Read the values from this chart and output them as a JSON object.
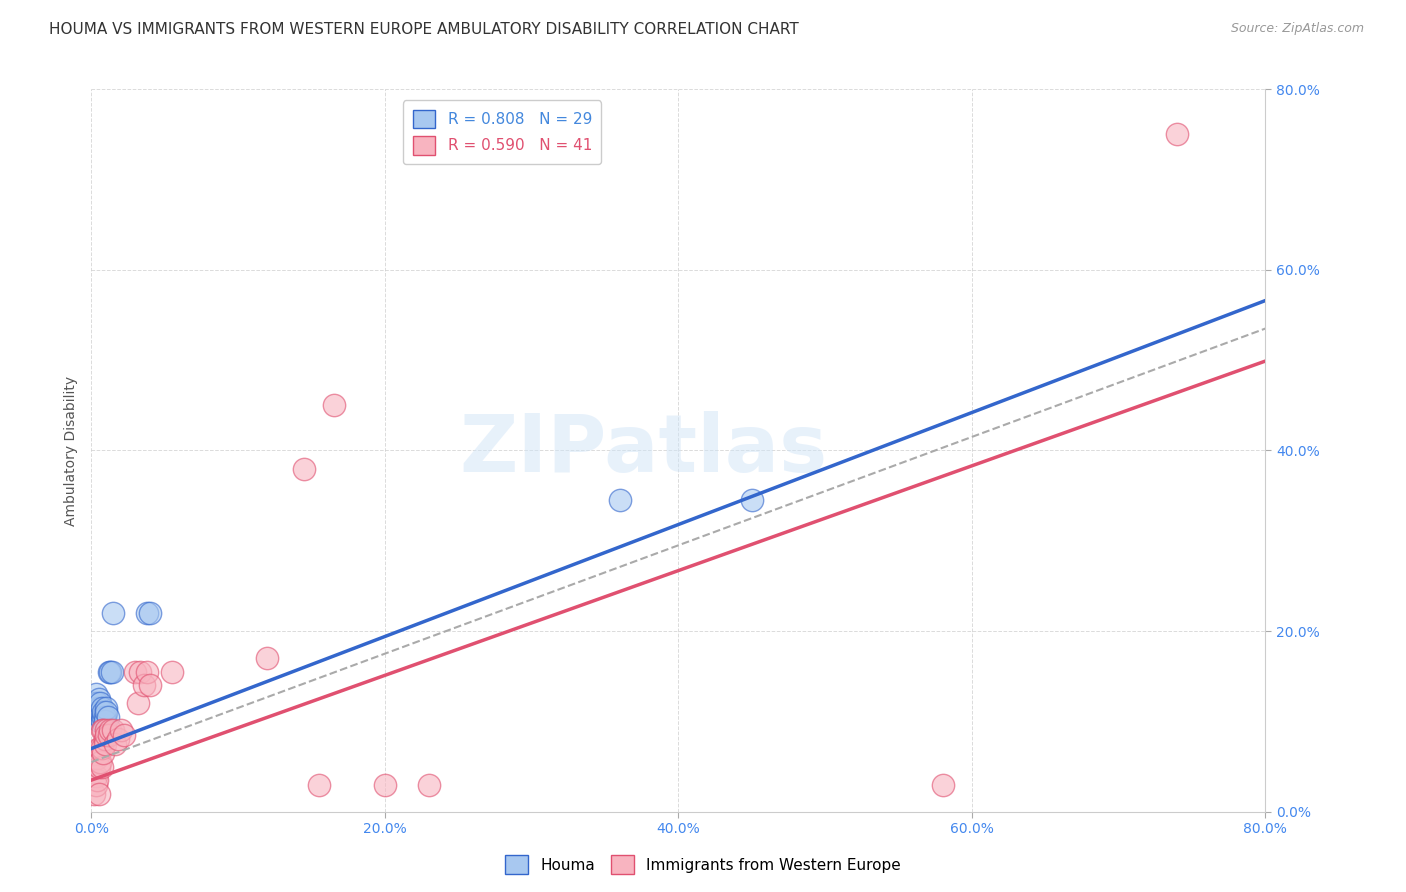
{
  "title": "HOUMA VS IMMIGRANTS FROM WESTERN EUROPE AMBULATORY DISABILITY CORRELATION CHART",
  "source": "Source: ZipAtlas.com",
  "ylabel": "Ambulatory Disability",
  "xlim": [
    0.0,
    0.8
  ],
  "ylim": [
    0.0,
    0.8
  ],
  "xticks": [
    0.0,
    0.2,
    0.4,
    0.6,
    0.8
  ],
  "yticks": [
    0.0,
    0.2,
    0.4,
    0.6,
    0.8
  ],
  "watermark": "ZIPatlas",
  "houma_scatter": [
    [
      0.002,
      0.12
    ],
    [
      0.003,
      0.13
    ],
    [
      0.003,
      0.115
    ],
    [
      0.004,
      0.12
    ],
    [
      0.004,
      0.11
    ],
    [
      0.005,
      0.115
    ],
    [
      0.005,
      0.1
    ],
    [
      0.005,
      0.125
    ],
    [
      0.006,
      0.105
    ],
    [
      0.006,
      0.11
    ],
    [
      0.006,
      0.12
    ],
    [
      0.007,
      0.105
    ],
    [
      0.007,
      0.1
    ],
    [
      0.007,
      0.115
    ],
    [
      0.008,
      0.105
    ],
    [
      0.008,
      0.11
    ],
    [
      0.009,
      0.105
    ],
    [
      0.009,
      0.1
    ],
    [
      0.01,
      0.115
    ],
    [
      0.01,
      0.11
    ],
    [
      0.011,
      0.105
    ],
    [
      0.012,
      0.155
    ],
    [
      0.013,
      0.155
    ],
    [
      0.014,
      0.155
    ],
    [
      0.015,
      0.22
    ],
    [
      0.038,
      0.22
    ],
    [
      0.04,
      0.22
    ],
    [
      0.36,
      0.345
    ],
    [
      0.45,
      0.345
    ]
  ],
  "immigrants_scatter": [
    [
      0.002,
      0.02
    ],
    [
      0.003,
      0.04
    ],
    [
      0.003,
      0.03
    ],
    [
      0.004,
      0.06
    ],
    [
      0.004,
      0.035
    ],
    [
      0.005,
      0.07
    ],
    [
      0.005,
      0.05
    ],
    [
      0.005,
      0.02
    ],
    [
      0.006,
      0.07
    ],
    [
      0.006,
      0.055
    ],
    [
      0.007,
      0.09
    ],
    [
      0.007,
      0.05
    ],
    [
      0.007,
      0.07
    ],
    [
      0.008,
      0.09
    ],
    [
      0.008,
      0.065
    ],
    [
      0.009,
      0.08
    ],
    [
      0.009,
      0.075
    ],
    [
      0.01,
      0.09
    ],
    [
      0.01,
      0.085
    ],
    [
      0.012,
      0.085
    ],
    [
      0.013,
      0.09
    ],
    [
      0.015,
      0.09
    ],
    [
      0.016,
      0.075
    ],
    [
      0.018,
      0.08
    ],
    [
      0.02,
      0.09
    ],
    [
      0.022,
      0.085
    ],
    [
      0.03,
      0.155
    ],
    [
      0.032,
      0.12
    ],
    [
      0.033,
      0.155
    ],
    [
      0.036,
      0.14
    ],
    [
      0.038,
      0.155
    ],
    [
      0.04,
      0.14
    ],
    [
      0.055,
      0.155
    ],
    [
      0.12,
      0.17
    ],
    [
      0.145,
      0.38
    ],
    [
      0.155,
      0.03
    ],
    [
      0.165,
      0.45
    ],
    [
      0.2,
      0.03
    ],
    [
      0.23,
      0.03
    ],
    [
      0.58,
      0.03
    ],
    [
      0.74,
      0.75
    ]
  ],
  "houma_color": "#a8c8f0",
  "immigrants_color": "#f8b4c0",
  "houma_line_color": "#3366cc",
  "immigrants_line_color": "#e05070",
  "background_color": "#ffffff",
  "grid_color": "#cccccc",
  "tick_color": "#4488ee",
  "title_fontsize": 11,
  "legend_label_1": "R = 0.808   N = 29",
  "legend_label_2": "R = 0.590   N = 41",
  "legend_color_1": "#4488dd",
  "legend_color_2": "#e05070"
}
